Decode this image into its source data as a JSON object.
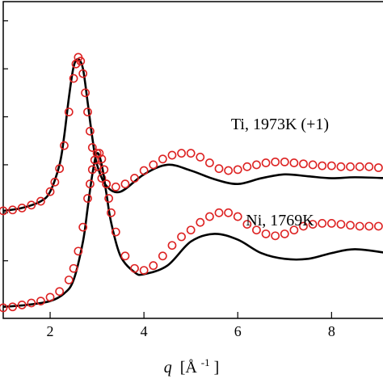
{
  "chart_data": {
    "type": "line",
    "xlabel": {
      "symbol": "q",
      "unit": "[Å",
      "exp": "-1",
      "close": "]"
    },
    "ylabel": "",
    "xlim": [
      1.0,
      9.2
    ],
    "ylim": [
      -0.1,
      3.2
    ],
    "x_ticks": [
      2,
      4,
      6,
      8
    ],
    "x_tick_labels": [
      "2",
      "4",
      "6",
      "8"
    ],
    "y_minor_ticks": [
      0.5,
      1.0,
      1.5,
      2.0,
      2.5,
      3.0
    ],
    "colors": {
      "line": "#000000",
      "markers": "#dd2222"
    },
    "annotations": [
      {
        "text": "Ti, 1973K (+1)",
        "x": 6.9,
        "y": 1.87
      },
      {
        "text": "Ni, 1769K",
        "x": 6.9,
        "y": 0.87
      }
    ],
    "series": [
      {
        "style": "line",
        "x": [
          1.0,
          1.4,
          1.8,
          2.0,
          2.2,
          2.3,
          2.4,
          2.5,
          2.6,
          2.7,
          2.8,
          2.9,
          3.0,
          3.2,
          3.5,
          4.0,
          4.5,
          5.0,
          5.5,
          6.0,
          6.5,
          7.0,
          7.5,
          8.0,
          8.5,
          9.2
        ],
        "y": [
          1.02,
          1.05,
          1.12,
          1.22,
          1.5,
          1.8,
          2.2,
          2.52,
          2.6,
          2.5,
          2.15,
          1.78,
          1.5,
          1.28,
          1.22,
          1.4,
          1.5,
          1.44,
          1.35,
          1.3,
          1.36,
          1.4,
          1.38,
          1.36,
          1.37,
          1.36
        ]
      },
      {
        "style": "markers",
        "x": [
          1.0,
          1.2,
          1.4,
          1.6,
          1.8,
          2.0,
          2.1,
          2.2,
          2.3,
          2.4,
          2.5,
          2.55,
          2.6,
          2.65,
          2.7,
          2.75,
          2.8,
          2.85,
          2.9,
          3.0,
          3.1,
          3.2,
          3.4,
          3.6,
          3.8,
          4.0,
          4.2,
          4.4,
          4.6,
          4.8,
          5.0,
          5.2,
          5.4,
          5.6,
          5.8,
          6.0,
          6.2,
          6.4,
          6.6,
          6.8,
          7.0,
          7.2,
          7.4,
          7.6,
          7.8,
          8.0,
          8.2,
          8.4,
          8.6,
          8.8,
          9.0,
          9.2
        ],
        "y": [
          1.02,
          1.03,
          1.05,
          1.08,
          1.12,
          1.22,
          1.32,
          1.46,
          1.7,
          2.05,
          2.4,
          2.55,
          2.62,
          2.58,
          2.45,
          2.25,
          2.05,
          1.85,
          1.68,
          1.48,
          1.36,
          1.3,
          1.27,
          1.3,
          1.36,
          1.44,
          1.5,
          1.56,
          1.6,
          1.62,
          1.62,
          1.58,
          1.52,
          1.46,
          1.44,
          1.45,
          1.48,
          1.5,
          1.52,
          1.53,
          1.53,
          1.52,
          1.51,
          1.5,
          1.49,
          1.49,
          1.48,
          1.48,
          1.48,
          1.48,
          1.47,
          1.47
        ]
      },
      {
        "style": "line",
        "x": [
          1.0,
          1.5,
          2.0,
          2.3,
          2.5,
          2.7,
          2.8,
          2.9,
          3.0,
          3.1,
          3.2,
          3.3,
          3.5,
          3.8,
          4.0,
          4.5,
          5.0,
          5.5,
          6.0,
          6.5,
          7.0,
          7.5,
          8.0,
          8.5,
          9.2
        ],
        "y": [
          0.02,
          0.04,
          0.08,
          0.16,
          0.3,
          0.7,
          1.05,
          1.4,
          1.62,
          1.5,
          1.2,
          0.9,
          0.55,
          0.38,
          0.36,
          0.45,
          0.7,
          0.78,
          0.72,
          0.58,
          0.52,
          0.52,
          0.58,
          0.62,
          0.58
        ]
      },
      {
        "style": "markers",
        "x": [
          1.0,
          1.2,
          1.4,
          1.6,
          1.8,
          2.0,
          2.2,
          2.4,
          2.5,
          2.6,
          2.7,
          2.8,
          2.85,
          2.9,
          2.95,
          3.0,
          3.05,
          3.1,
          3.15,
          3.2,
          3.25,
          3.3,
          3.4,
          3.6,
          3.8,
          4.0,
          4.2,
          4.4,
          4.6,
          4.8,
          5.0,
          5.2,
          5.4,
          5.6,
          5.8,
          6.0,
          6.2,
          6.4,
          6.6,
          6.8,
          7.0,
          7.2,
          7.4,
          7.6,
          7.8,
          8.0,
          8.2,
          8.4,
          8.6,
          8.8,
          9.0,
          9.2
        ],
        "y": [
          0.01,
          0.02,
          0.04,
          0.06,
          0.08,
          0.12,
          0.18,
          0.3,
          0.42,
          0.6,
          0.85,
          1.15,
          1.3,
          1.45,
          1.55,
          1.62,
          1.62,
          1.56,
          1.45,
          1.3,
          1.15,
          1.0,
          0.8,
          0.55,
          0.42,
          0.4,
          0.45,
          0.55,
          0.66,
          0.75,
          0.82,
          0.9,
          0.96,
          1.0,
          1.0,
          0.96,
          0.88,
          0.82,
          0.78,
          0.76,
          0.78,
          0.82,
          0.86,
          0.88,
          0.89,
          0.89,
          0.88,
          0.87,
          0.86,
          0.86,
          0.86,
          0.86
        ]
      }
    ]
  }
}
